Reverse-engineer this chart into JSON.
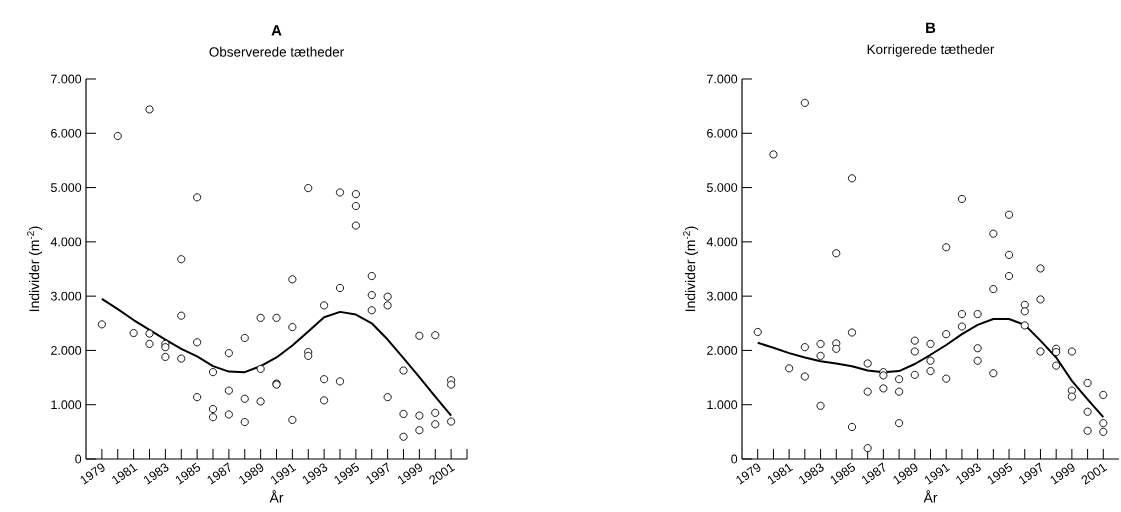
{
  "chart_data": [
    {
      "type": "scatter",
      "title": "A",
      "subtitle": "Observerede tætheder",
      "xlabel": "År",
      "ylabel": "Individer (m$^{-2}$)",
      "xlim": [
        1978,
        2002
      ],
      "xticks": [
        1979,
        {
          "value": 1980,
          "label": null
        },
        1981,
        {
          "value": 1982,
          "label": null
        },
        1983,
        {
          "value": 1984,
          "label": null
        },
        1985,
        {
          "value": 1986,
          "label": null
        },
        1987,
        {
          "value": 1988,
          "label": null
        },
        1989,
        {
          "value": 1990,
          "label": null
        },
        1991,
        {
          "value": 1992,
          "label": null
        },
        1993,
        {
          "value": 1994,
          "label": null
        },
        1995,
        {
          "value": 1996,
          "label": null
        },
        1997,
        {
          "value": 1998,
          "label": null
        },
        1999,
        {
          "value": 2000,
          "label": null
        },
        2001,
        {
          "value": 2002,
          "label": null
        }
      ],
      "ylim": [
        0,
        7000
      ],
      "yticks": [
        0,
        {
          "value": 1000,
          "label": "1.000"
        },
        {
          "value": 2000,
          "label": "2.000"
        },
        {
          "value": 3000,
          "label": "3.000"
        },
        {
          "value": 4000,
          "label": "4.000"
        },
        {
          "value": 5000,
          "label": "5.000"
        },
        {
          "value": 6000,
          "label": "6.000"
        },
        {
          "value": 7000,
          "label": "7.000"
        }
      ],
      "grid": false,
      "series": [
        {
          "type": "scatter",
          "marker": "circle",
          "color": "#000000",
          "x": [
            1979,
            1980,
            1981,
            1982,
            1982,
            1982,
            1983,
            1983,
            1983,
            1984,
            1984,
            1984,
            1985,
            1985,
            1985,
            1986,
            1986,
            1986,
            1987,
            1987,
            1987,
            1988,
            1988,
            1988,
            1989,
            1989,
            1989,
            1990,
            1990,
            1990,
            1991,
            1991,
            1991,
            1992,
            1992,
            1992,
            1993,
            1993,
            1993,
            1994,
            1994,
            1994,
            1995,
            1995,
            1995,
            1996,
            1996,
            1996,
            1997,
            1997,
            1997,
            1998,
            1998,
            1998,
            1999,
            1999,
            1999,
            2000,
            2000,
            2000,
            2001,
            2001,
            2001
          ],
          "values": [
            2480,
            5950,
            2320,
            6440,
            2310,
            2120,
            2120,
            2060,
            1880,
            3680,
            2640,
            1850,
            4820,
            2150,
            1140,
            1600,
            920,
            770,
            1950,
            1260,
            820,
            2230,
            1110,
            680,
            2600,
            1660,
            1060,
            2600,
            1390,
            1370,
            3310,
            2430,
            720,
            4990,
            1970,
            1900,
            2830,
            1470,
            1080,
            4910,
            3150,
            1430,
            4880,
            4660,
            4300,
            3370,
            3020,
            2740,
            2990,
            2830,
            1140,
            1630,
            830,
            410,
            2270,
            800,
            530,
            2280,
            850,
            640,
            1450,
            1370,
            690
          ]
        },
        {
          "type": "line",
          "marker": "none",
          "color": "#000000",
          "x": [
            1979,
            1980,
            1981,
            1982,
            1983,
            1984,
            1985,
            1986,
            1987,
            1988,
            1989,
            1990,
            1991,
            1992,
            1993,
            1994,
            1995,
            1996,
            1997,
            1998,
            1999,
            2000,
            2001
          ],
          "values": [
            2950,
            2760,
            2560,
            2380,
            2200,
            2030,
            1890,
            1710,
            1610,
            1600,
            1710,
            1870,
            2090,
            2350,
            2610,
            2710,
            2660,
            2500,
            2200,
            1860,
            1510,
            1150,
            800
          ]
        }
      ]
    },
    {
      "type": "scatter",
      "title": "B",
      "subtitle": "Korrigerede tætheder",
      "xlabel": "År",
      "ylabel": "Individer (m$^{-2}$)",
      "xlim": [
        1978,
        2002
      ],
      "xticks": [
        1979,
        {
          "value": 1980,
          "label": null
        },
        1981,
        {
          "value": 1982,
          "label": null
        },
        1983,
        {
          "value": 1984,
          "label": null
        },
        1985,
        {
          "value": 1986,
          "label": null
        },
        1987,
        {
          "value": 1988,
          "label": null
        },
        1989,
        {
          "value": 1990,
          "label": null
        },
        1991,
        {
          "value": 1992,
          "label": null
        },
        1993,
        {
          "value": 1994,
          "label": null
        },
        1995,
        {
          "value": 1996,
          "label": null
        },
        1997,
        {
          "value": 1998,
          "label": null
        },
        1999,
        {
          "value": 2000,
          "label": null
        },
        2001
      ],
      "ylim": [
        0,
        7000
      ],
      "yticks": [
        0,
        {
          "value": 1000,
          "label": "1.000"
        },
        {
          "value": 2000,
          "label": "2.000"
        },
        {
          "value": 3000,
          "label": "3.000"
        },
        {
          "value": 4000,
          "label": "4.000"
        },
        {
          "value": 5000,
          "label": "5.000"
        },
        {
          "value": 6000,
          "label": "6.000"
        },
        {
          "value": 7000,
          "label": "7.000"
        }
      ],
      "grid": false,
      "series": [
        {
          "type": "scatter",
          "marker": "circle",
          "color": "#000000",
          "x": [
            1979,
            1980,
            1981,
            1982,
            1982,
            1982,
            1983,
            1983,
            1983,
            1984,
            1984,
            1984,
            1985,
            1985,
            1985,
            1986,
            1986,
            1986,
            1987,
            1987,
            1987,
            1988,
            1988,
            1988,
            1989,
            1989,
            1989,
            1990,
            1990,
            1990,
            1991,
            1991,
            1991,
            1992,
            1992,
            1992,
            1993,
            1993,
            1993,
            1994,
            1994,
            1994,
            1995,
            1995,
            1995,
            1996,
            1996,
            1996,
            1997,
            1997,
            1997,
            1998,
            1998,
            1998,
            1999,
            1999,
            1999,
            2000,
            2000,
            2000,
            2001,
            2001,
            2001
          ],
          "values": [
            2340,
            5610,
            1670,
            6560,
            2060,
            1520,
            2120,
            1900,
            980,
            3790,
            2130,
            2030,
            5170,
            2330,
            590,
            1760,
            1240,
            200,
            1600,
            1540,
            1300,
            1470,
            1240,
            660,
            2180,
            1980,
            1550,
            2120,
            1810,
            1620,
            3900,
            2300,
            1480,
            4790,
            2670,
            2440,
            2670,
            2040,
            1810,
            4150,
            3130,
            1580,
            4500,
            3760,
            3370,
            2840,
            2720,
            2460,
            3510,
            2940,
            1980,
            2030,
            1970,
            1720,
            1980,
            1260,
            1150,
            1400,
            870,
            520,
            1180,
            660,
            500
          ]
        },
        {
          "type": "line",
          "marker": "none",
          "color": "#000000",
          "x": [
            1979,
            1980,
            1981,
            1982,
            1983,
            1984,
            1985,
            1986,
            1987,
            1988,
            1989,
            1990,
            1991,
            1992,
            1993,
            1994,
            1995,
            1996,
            1997,
            1998,
            1999,
            2000,
            2001
          ],
          "values": [
            2140,
            2050,
            1950,
            1870,
            1800,
            1760,
            1710,
            1630,
            1600,
            1620,
            1750,
            1920,
            2100,
            2300,
            2470,
            2580,
            2580,
            2470,
            2180,
            1870,
            1440,
            1100,
            770
          ]
        }
      ]
    }
  ]
}
